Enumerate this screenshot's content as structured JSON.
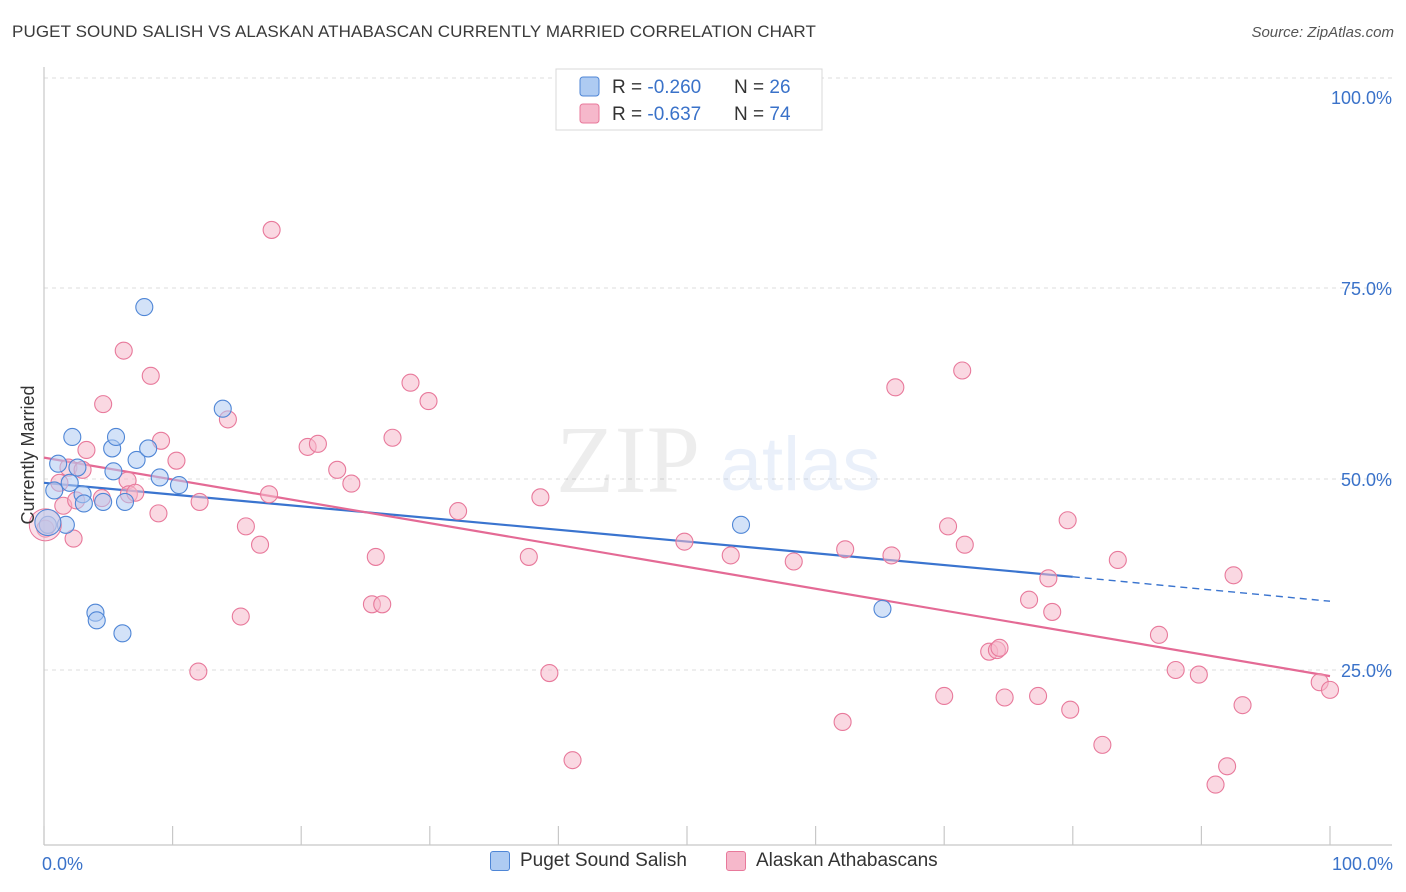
{
  "header": {
    "title": "PUGET SOUND SALISH VS ALASKAN ATHABASCAN CURRENTLY MARRIED CORRELATION CHART",
    "source": "Source: ZipAtlas.com"
  },
  "watermark": {
    "part1": "ZIP",
    "part2": "atlas"
  },
  "legend_box": {
    "rows": [
      {
        "r_label": "R = ",
        "r_value": "-0.260",
        "n_label": "N = ",
        "n_value": "26"
      },
      {
        "r_label": "R = ",
        "r_value": "-0.637",
        "n_label": "N = ",
        "n_value": "74"
      }
    ]
  },
  "colors": {
    "blue": "#4f86d6",
    "blue_fill": "#aecbf2",
    "blue_line": "#3a74cf",
    "pink": "#e8799b",
    "pink_fill": "#f6b8cb",
    "pink_line": "#e46a95",
    "value_text": "#3a72c9"
  },
  "chart_data": {
    "type": "scatter",
    "title": "PUGET SOUND SALISH VS ALASKAN ATHABASCAN CURRENTLY MARRIED CORRELATION CHART",
    "ylabel": "Currently Married",
    "xlabel": "",
    "xlim": [
      0,
      100
    ],
    "ylim": [
      0,
      100
    ],
    "x_tick_labels": [
      {
        "x": 0,
        "label": "0.0%"
      },
      {
        "x": 100,
        "label": "100.0%"
      }
    ],
    "y_tick_labels": [
      {
        "y": 100,
        "label": "100.0%"
      },
      {
        "y": 75,
        "label": "75.0%"
      },
      {
        "y": 50,
        "label": "50.0%"
      },
      {
        "y": 25,
        "label": "25.0%"
      }
    ],
    "grid": "horizontal dashed",
    "series": [
      {
        "name": "Puget Sound Salish",
        "color": "#4f86d6",
        "R": -0.26,
        "N": 26,
        "trend": {
          "x0": 0,
          "y0": 49.5,
          "x1": 80,
          "y1": 37.2,
          "dashed_to_x": 100,
          "dashed_to_y": 34.0
        },
        "points": [
          [
            0.3,
            44.0
          ],
          [
            0.8,
            48.5
          ],
          [
            1.1,
            52.0
          ],
          [
            1.7,
            44.0
          ],
          [
            2.0,
            49.5
          ],
          [
            2.2,
            55.5
          ],
          [
            2.6,
            51.5
          ],
          [
            3.0,
            48.0
          ],
          [
            3.1,
            46.8
          ],
          [
            4.0,
            32.5
          ],
          [
            4.1,
            31.5
          ],
          [
            4.6,
            47.0
          ],
          [
            5.3,
            54.0
          ],
          [
            5.4,
            51.0
          ],
          [
            5.6,
            55.5
          ],
          [
            6.1,
            29.8
          ],
          [
            6.3,
            47.0
          ],
          [
            7.2,
            52.5
          ],
          [
            7.8,
            72.5
          ],
          [
            8.1,
            54.0
          ],
          [
            9.0,
            50.2
          ],
          [
            10.5,
            49.2
          ],
          [
            13.9,
            59.2
          ],
          [
            54.2,
            44.0
          ],
          [
            65.2,
            33.0
          ]
        ]
      },
      {
        "name": "Alaskan Athabascans",
        "color": "#e8799b",
        "R": -0.637,
        "N": 74,
        "trend": {
          "x0": 0,
          "y0": 52.8,
          "x1": 100,
          "y1": 24.2
        },
        "points": [
          [
            0.1,
            43.5
          ],
          [
            1.2,
            49.5
          ],
          [
            1.5,
            46.5
          ],
          [
            1.9,
            51.5
          ],
          [
            2.3,
            42.2
          ],
          [
            2.5,
            47.2
          ],
          [
            3.0,
            51.2
          ],
          [
            3.3,
            53.8
          ],
          [
            4.5,
            47.5
          ],
          [
            4.6,
            59.8
          ],
          [
            6.2,
            66.8
          ],
          [
            6.5,
            49.8
          ],
          [
            6.6,
            48.0
          ],
          [
            7.1,
            48.2
          ],
          [
            8.3,
            63.5
          ],
          [
            8.9,
            45.5
          ],
          [
            9.1,
            55.0
          ],
          [
            10.3,
            52.4
          ],
          [
            12.0,
            24.8
          ],
          [
            12.1,
            47.0
          ],
          [
            14.3,
            57.8
          ],
          [
            15.3,
            32.0
          ],
          [
            15.7,
            43.8
          ],
          [
            16.8,
            41.4
          ],
          [
            17.5,
            48.0
          ],
          [
            17.7,
            82.6
          ],
          [
            20.5,
            54.2
          ],
          [
            21.3,
            54.6
          ],
          [
            22.8,
            51.2
          ],
          [
            23.9,
            49.4
          ],
          [
            25.5,
            33.6
          ],
          [
            25.8,
            39.8
          ],
          [
            26.3,
            33.6
          ],
          [
            27.1,
            55.4
          ],
          [
            28.5,
            62.6
          ],
          [
            29.9,
            60.2
          ],
          [
            32.2,
            45.8
          ],
          [
            37.7,
            39.8
          ],
          [
            38.6,
            47.6
          ],
          [
            39.3,
            24.6
          ],
          [
            41.1,
            13.2
          ],
          [
            49.8,
            41.8
          ],
          [
            53.4,
            40.0
          ],
          [
            58.3,
            39.2
          ],
          [
            62.1,
            18.2
          ],
          [
            62.3,
            40.8
          ],
          [
            65.9,
            40.0
          ],
          [
            66.2,
            62.0
          ],
          [
            70.0,
            21.6
          ],
          [
            70.3,
            43.8
          ],
          [
            71.4,
            64.2
          ],
          [
            71.6,
            41.4
          ],
          [
            73.5,
            27.4
          ],
          [
            74.1,
            27.6
          ],
          [
            74.3,
            27.9
          ],
          [
            74.7,
            21.4
          ],
          [
            76.6,
            34.2
          ],
          [
            77.3,
            21.6
          ],
          [
            78.1,
            37.0
          ],
          [
            78.4,
            32.6
          ],
          [
            79.6,
            44.6
          ],
          [
            79.8,
            19.8
          ],
          [
            82.3,
            15.2
          ],
          [
            83.5,
            39.4
          ],
          [
            86.7,
            29.6
          ],
          [
            88.0,
            25.0
          ],
          [
            89.8,
            24.4
          ],
          [
            91.1,
            10.0
          ],
          [
            92.0,
            12.4
          ],
          [
            92.5,
            37.4
          ],
          [
            93.2,
            20.4
          ],
          [
            99.2,
            23.4
          ],
          [
            100.0,
            22.4
          ]
        ]
      }
    ]
  }
}
